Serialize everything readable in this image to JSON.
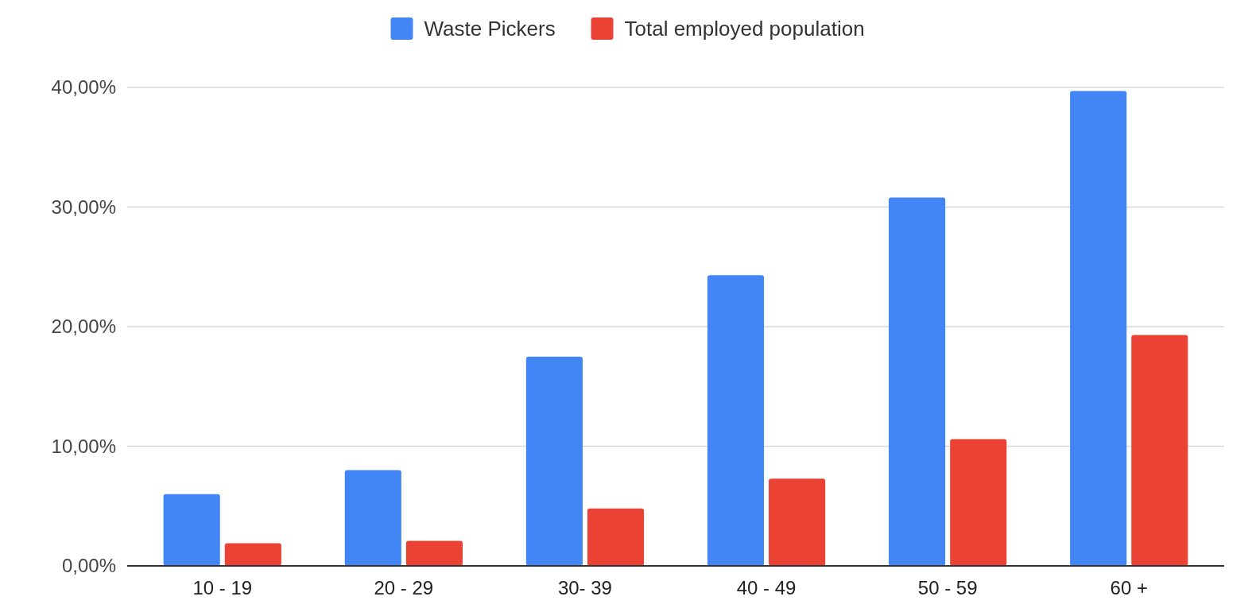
{
  "chart_data": {
    "type": "bar",
    "categories": [
      "10 - 19",
      "20 - 29",
      "30- 39",
      "40 - 49",
      "50 - 59",
      "60 +"
    ],
    "series": [
      {
        "name": "Waste Pickers",
        "color": "#4285f4",
        "values": [
          6.0,
          8.0,
          17.5,
          24.3,
          30.8,
          39.7
        ]
      },
      {
        "name": "Total employed population",
        "color": "#ea4335",
        "values": [
          1.9,
          2.1,
          4.8,
          7.3,
          10.6,
          19.3
        ]
      }
    ],
    "ylim": [
      0,
      40
    ],
    "yticks": [
      {
        "value": 0,
        "label": "0,00%"
      },
      {
        "value": 10,
        "label": "10,00%"
      },
      {
        "value": 20,
        "label": "20,00%"
      },
      {
        "value": 30,
        "label": "30,00%"
      },
      {
        "value": 40,
        "label": "40,00%"
      }
    ],
    "grid": "y",
    "legend": "top"
  }
}
